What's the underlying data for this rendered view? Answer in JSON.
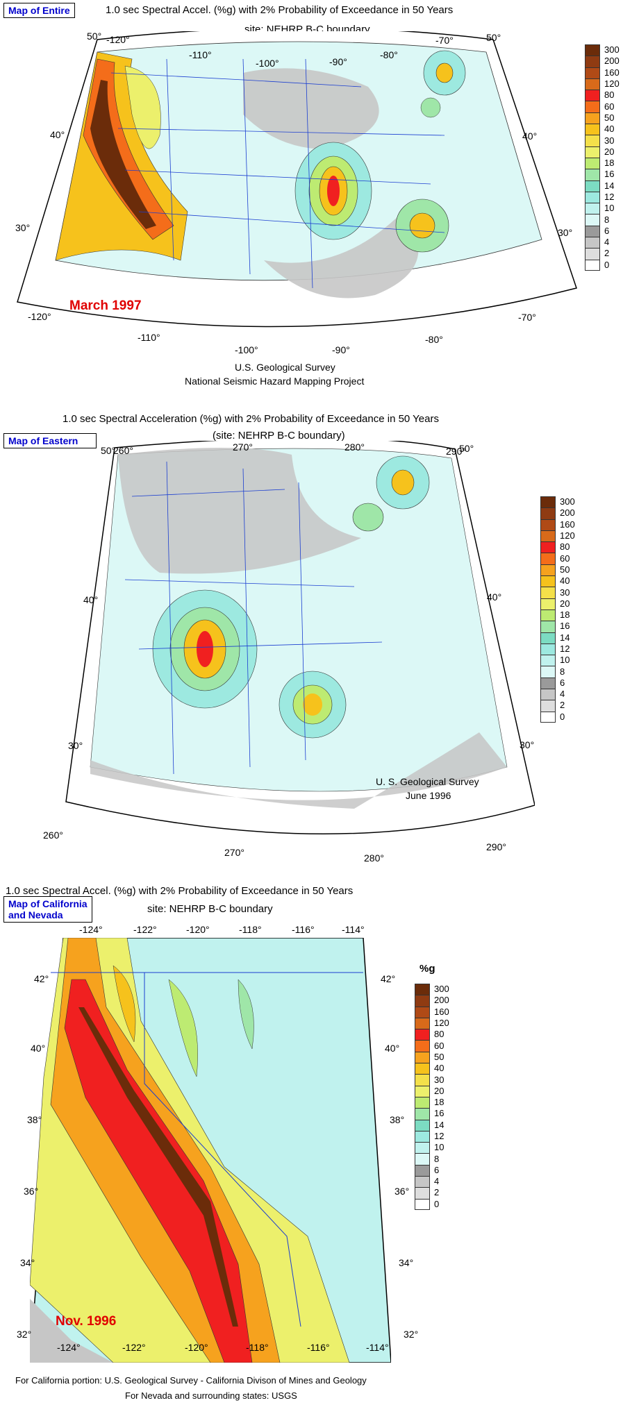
{
  "legend_values": [
    "300",
    "200",
    "160",
    "120",
    "80",
    "60",
    "50",
    "40",
    "30",
    "20",
    "18",
    "16",
    "14",
    "12",
    "10",
    "8",
    "6",
    "4",
    "2",
    "0"
  ],
  "legend_colors": [
    "#6b2c0a",
    "#8f3b12",
    "#b04a16",
    "#d86a1a",
    "#f02020",
    "#f46d1a",
    "#f6a21e",
    "#f6c21c",
    "#f4e04a",
    "#ecf06c",
    "#bdeb72",
    "#9fe6a8",
    "#7cdcc2",
    "#9de9e0",
    "#c0f2ee",
    "#dcf8f6",
    "#9a9a9a",
    "#c6c6c6",
    "#dedede",
    "#ffffff"
  ],
  "map1": {
    "button": "Map of Entire",
    "title": "1.0 sec Spectral Accel. (%g) with 2% Probability of Exceedance in 50 Years",
    "subtitle": "site: NEHRP B-C boundary",
    "date": "March 1997",
    "credit1": "U.S. Geological Survey",
    "credit2": "National Seismic Hazard Mapping Project",
    "top_lon": [
      "-120°",
      "-110°",
      "-100°",
      "-90°",
      "-80°",
      "-70°"
    ],
    "bottom_lon": [
      "-120°",
      "-110°",
      "-100°",
      "-90°",
      "-80°",
      "-70°"
    ],
    "left_lat": [
      "50°",
      "40°",
      "30°"
    ],
    "right_lat": [
      "50°",
      "40°",
      "30°"
    ]
  },
  "map2": {
    "button": "Map of Eastern",
    "title": "1.0 sec Spectral Acceleration (%g) with 2% Probability of Exceedance in 50 Years",
    "subtitle": "(site: NEHRP B-C boundary)",
    "credit1": "U. S. Geological Survey",
    "credit2": "June 1996",
    "top_lon": [
      "260°",
      "270°",
      "280°",
      "290°"
    ],
    "bottom_lon": [
      "260°",
      "270°",
      "280°",
      "290°"
    ],
    "left_lat": [
      "50°",
      "40°",
      "30°"
    ],
    "right_lat": [
      "50°",
      "40°",
      "30°"
    ]
  },
  "map3": {
    "button": "Map of California\nand Nevada",
    "title": "1.0 sec Spectral Accel. (%g) with 2% Probability of Exceedance in 50 Years",
    "subtitle": "site: NEHRP B-C boundary",
    "unit": "%g",
    "date": "Nov. 1996",
    "credit1": "For California portion: U.S. Geological Survey - California Divison of Mines and Geology",
    "credit2": "For Nevada and surrounding states: USGS",
    "top_lon": [
      "-124°",
      "-122°",
      "-120°",
      "-118°",
      "-116°",
      "-114°"
    ],
    "bottom_lon": [
      "-124°",
      "-122°",
      "-120°",
      "-118°",
      "-116°",
      "-114°"
    ],
    "left_lat": [
      "42°",
      "40°",
      "38°",
      "36°",
      "34°",
      "32°"
    ],
    "right_lat": [
      "42°",
      "40°",
      "38°",
      "36°",
      "34°",
      "32°"
    ]
  }
}
